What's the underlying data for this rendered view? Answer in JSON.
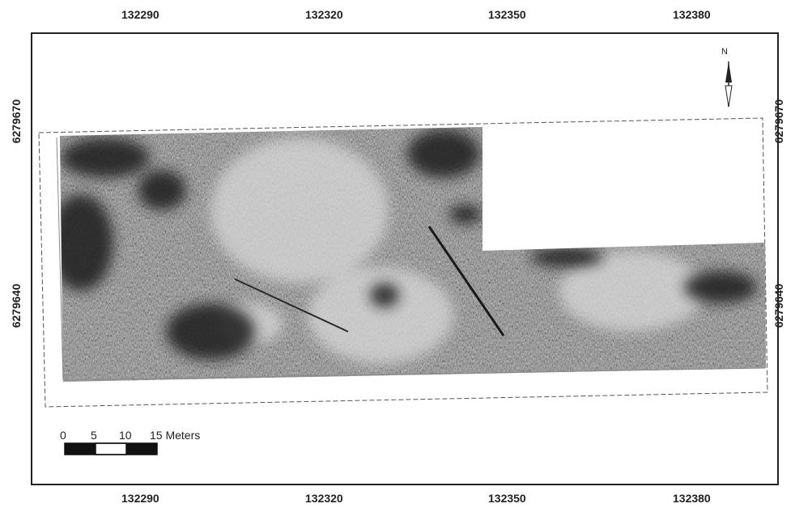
{
  "map": {
    "x_ticks": [
      "132290",
      "132320",
      "132350",
      "132380"
    ],
    "y_ticks": [
      "6279670",
      "6279640"
    ],
    "scale": {
      "labels": [
        "0",
        "5",
        "10",
        "15 Meters"
      ]
    },
    "north_label": "N"
  },
  "colors": {
    "frame": "#222222",
    "grid": "#bbbbbb",
    "survey_dark": "#2a2a2a",
    "survey_light": "#d8d8d8"
  }
}
